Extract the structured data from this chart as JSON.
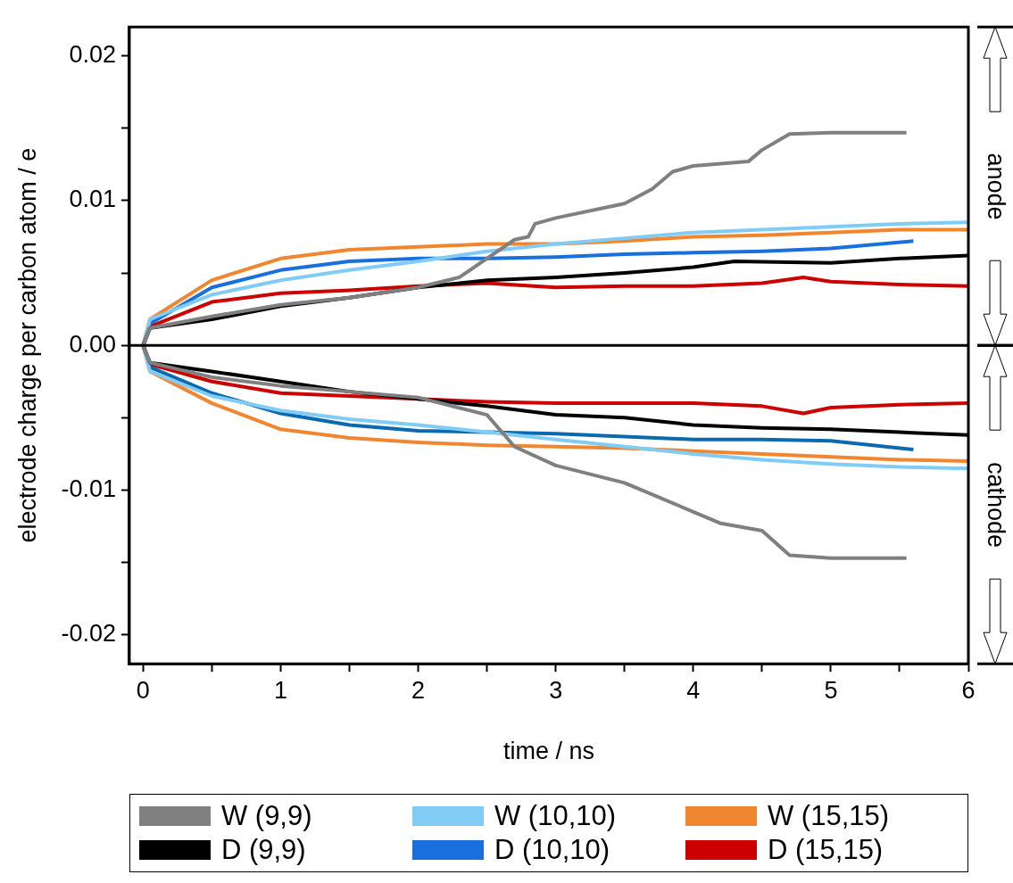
{
  "chart_data": {
    "type": "line",
    "xlabel": "time / ns",
    "ylabel": "electrode charge per carbon atom / e",
    "xlim": [
      -0.1,
      6
    ],
    "ylim": [
      -0.022,
      0.022
    ],
    "xticks": [
      0,
      {
        "value": 0.5,
        "label": null
      },
      1,
      {
        "value": 1.5,
        "label": null
      },
      2,
      {
        "value": 2.5,
        "label": null
      },
      3,
      {
        "value": 3.5,
        "label": null
      },
      4,
      {
        "value": 4.5,
        "label": null
      },
      5,
      {
        "value": 5.5,
        "label": null
      },
      6
    ],
    "yticks": [
      -0.02,
      {
        "value": -0.015,
        "label": null
      },
      -0.01,
      {
        "value": -0.005,
        "label": null
      },
      {
        "value": 0,
        "label": "0.00"
      },
      {
        "value": 0.005,
        "label": null
      },
      0.01,
      {
        "value": 0.015,
        "label": null
      },
      0.02
    ],
    "grid": false,
    "legend": "bottom",
    "marker": "none",
    "line_style": "solid",
    "ref_lines": [
      {
        "axis": "y",
        "value": 0,
        "color": "#000000"
      }
    ],
    "annotations": [
      "anode",
      "cathode"
    ],
    "series": [
      {
        "name": "W (9,9)",
        "color": "#808080",
        "x": [
          0,
          0.05,
          0.5,
          1,
          1.5,
          2,
          2.3,
          2.7,
          2.8,
          2.85,
          3,
          3.5,
          3.7,
          3.85,
          4,
          4.4,
          4.5,
          4.7,
          5,
          5.55
        ],
        "values": [
          0,
          0.0012,
          0.002,
          0.0028,
          0.0033,
          0.004,
          0.0047,
          0.0073,
          0.0075,
          0.0084,
          0.0088,
          0.0098,
          0.0108,
          0.012,
          0.0124,
          0.0127,
          0.0135,
          0.0146,
          0.0147,
          0.0147
        ]
      },
      {
        "name": "D (9,9)",
        "color": "#000000",
        "x": [
          0,
          0.05,
          0.5,
          1,
          1.5,
          2,
          2.5,
          3,
          3.5,
          4,
          4.3,
          5,
          5.5,
          6
        ],
        "values": [
          0,
          0.0012,
          0.0018,
          0.0027,
          0.0033,
          0.004,
          0.0045,
          0.0047,
          0.005,
          0.0054,
          0.0058,
          0.0057,
          0.006,
          0.0062
        ]
      },
      {
        "name": "W (10,10)",
        "color": "#80ccf5",
        "x": [
          0,
          0.05,
          0.5,
          1,
          1.5,
          2,
          2.5,
          3,
          3.5,
          4,
          4.5,
          5,
          5.5,
          6
        ],
        "values": [
          0,
          0.0018,
          0.0035,
          0.0045,
          0.0052,
          0.0058,
          0.0065,
          0.007,
          0.0074,
          0.0078,
          0.008,
          0.0082,
          0.0084,
          0.0085
        ]
      },
      {
        "name": "D (10,10)",
        "color": "#1a6fdf",
        "x": [
          0,
          0.05,
          0.5,
          1,
          1.5,
          2,
          2.5,
          3,
          3.5,
          4,
          4.5,
          5,
          5.6
        ],
        "values": [
          0,
          0.0015,
          0.004,
          0.0052,
          0.0058,
          0.006,
          0.006,
          0.0061,
          0.0063,
          0.0064,
          0.0065,
          0.0067,
          0.0072
        ]
      },
      {
        "name": "W (15,15)",
        "color": "#f0862f",
        "x": [
          0,
          0.05,
          0.5,
          1,
          1.5,
          2,
          2.5,
          3,
          3.5,
          4,
          4.5,
          5,
          5.5,
          6
        ],
        "values": [
          0,
          0.0018,
          0.0045,
          0.006,
          0.0066,
          0.0068,
          0.007,
          0.007,
          0.0072,
          0.0075,
          0.0076,
          0.0078,
          0.008,
          0.008
        ]
      },
      {
        "name": "D (15,15)",
        "color": "#cc0000",
        "x": [
          0,
          0.05,
          0.5,
          1,
          1.5,
          2,
          2.5,
          3,
          3.5,
          4,
          4.5,
          4.8,
          5,
          5.5,
          6
        ],
        "values": [
          0,
          0.0013,
          0.003,
          0.0036,
          0.0038,
          0.0041,
          0.0043,
          0.004,
          0.0041,
          0.0041,
          0.0043,
          0.0047,
          0.0044,
          0.0042,
          0.0041
        ]
      },
      {
        "color": "#808080",
        "x": [
          0,
          0.05,
          0.5,
          1,
          1.5,
          2,
          2.5,
          2.7,
          3,
          3.5,
          4,
          4.2,
          4.5,
          4.7,
          5,
          5.55
        ],
        "values": [
          0,
          -0.0012,
          -0.0022,
          -0.0028,
          -0.0032,
          -0.0036,
          -0.0048,
          -0.007,
          -0.0083,
          -0.0095,
          -0.0115,
          -0.0123,
          -0.0128,
          -0.0145,
          -0.0147,
          -0.0147
        ]
      },
      {
        "color": "#000000",
        "x": [
          0,
          0.05,
          0.5,
          1,
          1.5,
          2,
          2.5,
          3,
          3.5,
          4,
          4.5,
          5,
          5.5,
          6
        ],
        "values": [
          0,
          -0.0012,
          -0.0018,
          -0.0025,
          -0.0032,
          -0.0037,
          -0.0042,
          -0.0048,
          -0.005,
          -0.0055,
          -0.0057,
          -0.0058,
          -0.006,
          -0.0062
        ]
      },
      {
        "color": "#80ccf5",
        "x": [
          0,
          0.05,
          0.5,
          1,
          1.5,
          2,
          2.5,
          3,
          3.5,
          4,
          4.5,
          5,
          5.5,
          6
        ],
        "values": [
          0,
          -0.0018,
          -0.0035,
          -0.0045,
          -0.0051,
          -0.0055,
          -0.006,
          -0.0065,
          -0.007,
          -0.0075,
          -0.0079,
          -0.0082,
          -0.0084,
          -0.0085
        ]
      },
      {
        "color": "#0a6aad",
        "x": [
          0,
          0.05,
          0.5,
          1,
          1.5,
          2,
          2.5,
          3,
          3.5,
          4,
          4.5,
          5,
          5.6
        ],
        "values": [
          0,
          -0.0015,
          -0.0033,
          -0.0047,
          -0.0055,
          -0.0059,
          -0.006,
          -0.0061,
          -0.0063,
          -0.0065,
          -0.0065,
          -0.0066,
          -0.0072
        ]
      },
      {
        "color": "#f0862f",
        "x": [
          0,
          0.05,
          0.5,
          1,
          1.5,
          2,
          2.5,
          3,
          3.5,
          4,
          4.5,
          5,
          5.5,
          6
        ],
        "values": [
          0,
          -0.0018,
          -0.004,
          -0.0058,
          -0.0064,
          -0.0067,
          -0.0069,
          -0.007,
          -0.0071,
          -0.0073,
          -0.0075,
          -0.0077,
          -0.0079,
          -0.008
        ]
      },
      {
        "color": "#cc0000",
        "x": [
          0,
          0.05,
          0.5,
          1,
          1.5,
          2,
          2.5,
          3,
          3.5,
          4,
          4.5,
          4.8,
          5,
          5.5,
          6
        ],
        "values": [
          0,
          -0.0013,
          -0.0025,
          -0.0033,
          -0.0035,
          -0.0037,
          -0.0039,
          -0.004,
          -0.004,
          -0.004,
          -0.0042,
          -0.0047,
          -0.0043,
          -0.0041,
          -0.004
        ]
      }
    ]
  }
}
